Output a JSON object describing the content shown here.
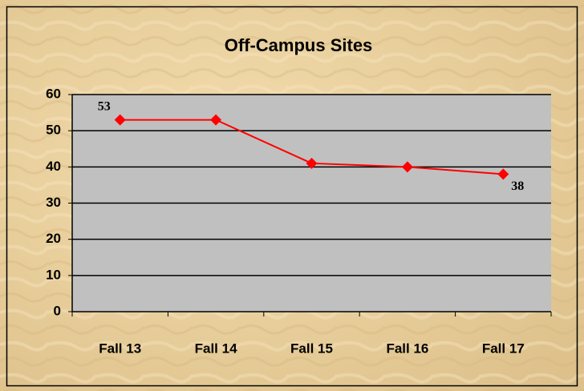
{
  "chart_data": {
    "type": "line",
    "title": "Off-Campus Sites",
    "categories": [
      "Fall 13",
      "Fall 14",
      "Fall 15",
      "Fall 16",
      "Fall 17"
    ],
    "series": [
      {
        "name": "Off-Campus Sites",
        "color": "#ff0000",
        "values": [
          53,
          53,
          41,
          40,
          38
        ],
        "value_labels": [
          "53",
          null,
          null,
          null,
          "38"
        ]
      }
    ],
    "ylim": [
      0,
      60
    ],
    "yticks": [
      0,
      10,
      20,
      30,
      40,
      50,
      60
    ],
    "grid": true,
    "legend": false
  }
}
